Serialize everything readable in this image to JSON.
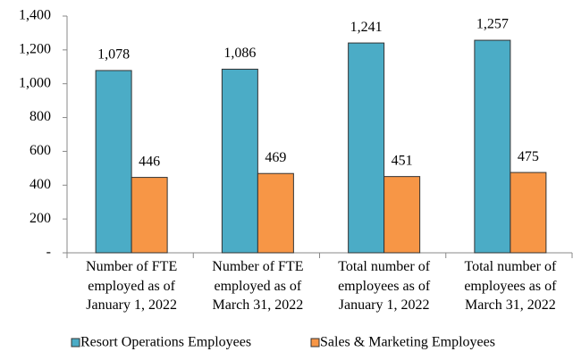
{
  "chart_data": {
    "type": "bar",
    "categories": [
      "Number of FTE employed as of January 1, 2022",
      "Number of FTE employed as of March 31, 2022",
      "Total number of employees as of January 1, 2022",
      "Total number of employees as of March 31, 2022"
    ],
    "series": [
      {
        "name": "Resort Operations Employees",
        "color": "#4bacc6",
        "values": [
          1078,
          1086,
          1241,
          1257
        ],
        "value_labels": [
          "1,078",
          "1,086",
          "1,241",
          "1,257"
        ]
      },
      {
        "name": "Sales & Marketing Employees",
        "color": "#f79646",
        "values": [
          446,
          469,
          451,
          475
        ],
        "value_labels": [
          "446",
          "469",
          "451",
          "475"
        ]
      }
    ],
    "ylim": [
      0,
      1400
    ],
    "yticks": [
      {
        "value": 0,
        "label": "-"
      },
      200,
      400,
      600,
      800,
      {
        "value": 1000,
        "label": "1,000"
      },
      {
        "value": 1200,
        "label": "1,200"
      },
      {
        "value": 1400,
        "label": "1,400"
      }
    ],
    "grid": false,
    "legend": "bottom"
  }
}
